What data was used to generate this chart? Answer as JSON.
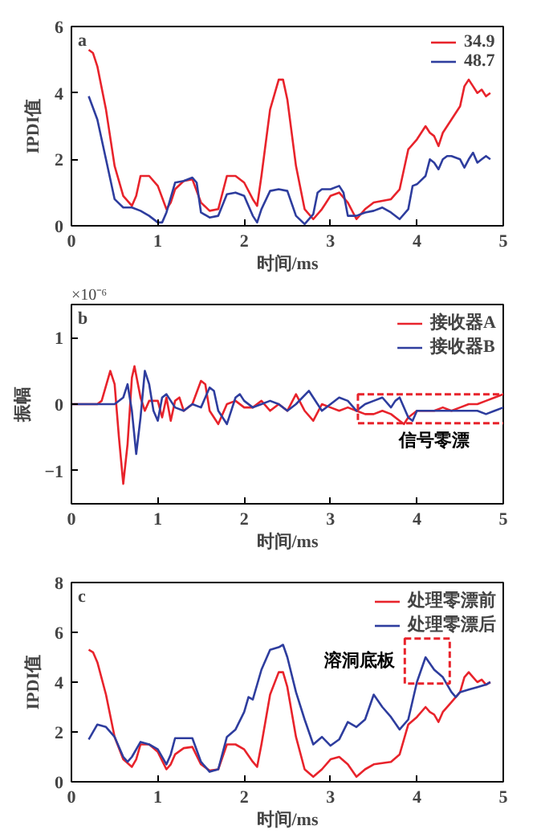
{
  "chart_data": [
    {
      "type": "line",
      "title": "a",
      "xlabel": "时间/ms",
      "ylabel": "IPDI值",
      "xlim": [
        0,
        5
      ],
      "xticks": [
        0,
        1,
        2,
        3,
        4,
        5
      ],
      "ylim": [
        0,
        6
      ],
      "yticks": [
        0,
        2,
        4,
        6
      ],
      "grid": false,
      "legend": "top right",
      "series": [
        {
          "name": "34.9",
          "color": "#e8232b",
          "x": [
            0.2,
            0.25,
            0.3,
            0.4,
            0.5,
            0.6,
            0.7,
            0.75,
            0.8,
            0.9,
            1.0,
            1.1,
            1.15,
            1.2,
            1.3,
            1.4,
            1.5,
            1.6,
            1.7,
            1.8,
            1.9,
            2.0,
            2.1,
            2.15,
            2.2,
            2.3,
            2.4,
            2.45,
            2.5,
            2.6,
            2.7,
            2.8,
            2.9,
            3.0,
            3.1,
            3.2,
            3.3,
            3.4,
            3.5,
            3.6,
            3.7,
            3.8,
            3.9,
            4.0,
            4.1,
            4.15,
            4.2,
            4.25,
            4.3,
            4.4,
            4.5,
            4.55,
            4.6,
            4.65,
            4.7,
            4.75,
            4.8,
            4.85
          ],
          "values": [
            5.3,
            5.2,
            4.8,
            3.5,
            1.8,
            0.9,
            0.6,
            0.9,
            1.5,
            1.5,
            1.2,
            0.5,
            0.7,
            1.1,
            1.35,
            1.4,
            0.7,
            0.45,
            0.5,
            1.5,
            1.5,
            1.3,
            0.8,
            0.6,
            1.5,
            3.5,
            4.4,
            4.4,
            3.8,
            1.8,
            0.5,
            0.2,
            0.5,
            0.9,
            1.0,
            0.7,
            0.2,
            0.5,
            0.7,
            0.75,
            0.8,
            1.1,
            2.3,
            2.6,
            3.0,
            2.8,
            2.7,
            2.4,
            2.8,
            3.2,
            3.6,
            4.2,
            4.4,
            4.2,
            4.0,
            4.1,
            3.9,
            4.0
          ]
        },
        {
          "name": "48.7",
          "color": "#2e3d9e",
          "x": [
            0.2,
            0.3,
            0.4,
            0.5,
            0.6,
            0.7,
            0.8,
            0.9,
            1.0,
            1.05,
            1.1,
            1.2,
            1.3,
            1.4,
            1.45,
            1.5,
            1.6,
            1.7,
            1.8,
            1.9,
            2.0,
            2.1,
            2.15,
            2.2,
            2.3,
            2.4,
            2.5,
            2.6,
            2.7,
            2.8,
            2.85,
            2.9,
            3.0,
            3.1,
            3.15,
            3.2,
            3.3,
            3.4,
            3.5,
            3.6,
            3.7,
            3.8,
            3.9,
            3.95,
            4.0,
            4.1,
            4.15,
            4.2,
            4.25,
            4.3,
            4.35,
            4.4,
            4.5,
            4.55,
            4.6,
            4.65,
            4.7,
            4.75,
            4.8,
            4.85
          ],
          "values": [
            3.9,
            3.2,
            2.0,
            0.8,
            0.55,
            0.55,
            0.45,
            0.3,
            0.1,
            0.1,
            0.4,
            1.3,
            1.35,
            1.45,
            1.3,
            0.4,
            0.25,
            0.3,
            0.95,
            1.0,
            0.9,
            0.3,
            0.1,
            0.5,
            1.05,
            1.1,
            1.05,
            0.3,
            0.05,
            0.35,
            1.0,
            1.1,
            1.1,
            1.2,
            1.0,
            0.3,
            0.3,
            0.4,
            0.45,
            0.55,
            0.4,
            0.2,
            0.5,
            1.2,
            1.25,
            1.5,
            2.0,
            1.9,
            1.7,
            2.0,
            2.1,
            2.1,
            2.0,
            1.75,
            2.0,
            2.2,
            1.9,
            2.0,
            2.1,
            2.0
          ]
        }
      ]
    },
    {
      "type": "line",
      "title": "b",
      "xlabel": "时间/ms",
      "ylabel": "振幅",
      "xlim": [
        0,
        5
      ],
      "xticks": [
        0,
        1,
        2,
        3,
        4,
        5
      ],
      "ylim": [
        -1.5,
        1.5
      ],
      "yticks": [
        -1,
        0,
        1
      ],
      "grid": false,
      "legend": "top right",
      "annotations": [
        "×10⁻⁶",
        {
          "text": "信号零漂",
          "x": 4.2,
          "y": -0.07
        }
      ],
      "series": [
        {
          "name": "接收器A",
          "color": "#e8232b",
          "x": [
            0,
            0.3,
            0.35,
            0.45,
            0.5,
            0.55,
            0.6,
            0.65,
            0.7,
            0.73,
            0.8,
            0.85,
            0.9,
            1.0,
            1.05,
            1.1,
            1.15,
            1.2,
            1.25,
            1.3,
            1.4,
            1.5,
            1.55,
            1.6,
            1.7,
            1.8,
            1.9,
            2.0,
            2.1,
            2.2,
            2.3,
            2.4,
            2.5,
            2.6,
            2.7,
            2.8,
            2.9,
            3.0,
            3.1,
            3.2,
            3.3,
            3.4,
            3.5,
            3.6,
            3.7,
            3.8,
            3.85,
            3.9,
            4.0,
            4.1,
            4.2,
            4.3,
            4.4,
            4.5,
            4.6,
            4.7,
            4.8,
            4.9,
            5.0
          ],
          "values": [
            0,
            0,
            0.05,
            0.5,
            0.3,
            -0.5,
            -1.2,
            -0.6,
            0.4,
            0.57,
            0.1,
            -0.1,
            0.05,
            0.05,
            -0.2,
            0.1,
            -0.25,
            0.05,
            0.1,
            -0.1,
            0.0,
            0.35,
            0.3,
            -0.1,
            -0.3,
            0,
            0.05,
            -0.05,
            -0.05,
            0.05,
            -0.1,
            0.0,
            -0.1,
            0.15,
            -0.1,
            -0.25,
            0.0,
            -0.05,
            -0.1,
            -0.05,
            -0.1,
            -0.15,
            -0.15,
            -0.1,
            -0.15,
            -0.25,
            -0.3,
            -0.2,
            -0.1,
            -0.1,
            -0.1,
            -0.05,
            -0.1,
            -0.05,
            0.0,
            0.0,
            0.05,
            0.1,
            0.15
          ]
        },
        {
          "name": "接收器B",
          "color": "#2e3d9e",
          "x": [
            0,
            0.5,
            0.6,
            0.65,
            0.7,
            0.75,
            0.8,
            0.85,
            0.9,
            0.95,
            1.0,
            1.05,
            1.1,
            1.2,
            1.3,
            1.4,
            1.5,
            1.6,
            1.65,
            1.7,
            1.8,
            1.9,
            1.95,
            2.0,
            2.1,
            2.2,
            2.3,
            2.4,
            2.5,
            2.6,
            2.75,
            2.8,
            2.9,
            3.0,
            3.1,
            3.2,
            3.3,
            3.4,
            3.5,
            3.6,
            3.7,
            3.75,
            3.8,
            3.9,
            3.95,
            4.0,
            4.1,
            4.2,
            4.3,
            4.4,
            4.5,
            4.6,
            4.7,
            4.8,
            4.9,
            5.0
          ],
          "values": [
            0,
            0,
            0.1,
            0.3,
            -0.1,
            -0.75,
            -0.2,
            0.5,
            0.3,
            -0.1,
            -0.25,
            0.1,
            0.15,
            -0.05,
            -0.1,
            0.0,
            -0.05,
            0.25,
            0.2,
            -0.1,
            -0.3,
            0.1,
            0.15,
            0.05,
            -0.05,
            0.0,
            0.05,
            0.0,
            -0.1,
            0.0,
            0.2,
            0.1,
            -0.1,
            0.0,
            0.1,
            0.05,
            -0.1,
            0.0,
            0.05,
            0.1,
            -0.05,
            0.05,
            0.1,
            -0.2,
            -0.25,
            -0.1,
            -0.1,
            -0.1,
            -0.1,
            -0.1,
            -0.1,
            -0.1,
            -0.1,
            -0.15,
            -0.1,
            -0.05
          ]
        }
      ]
    },
    {
      "type": "line",
      "title": "c",
      "xlabel": "时间/ms",
      "ylabel": "IPDI值",
      "xlim": [
        0,
        5
      ],
      "xticks": [
        0,
        1,
        2,
        3,
        4,
        5
      ],
      "ylim": [
        0,
        8
      ],
      "yticks": [
        0,
        2,
        4,
        6,
        8
      ],
      "grid": false,
      "legend": "top right",
      "annotations": [
        {
          "text": "溶洞底板",
          "x": 4.12,
          "y": 4.85
        }
      ],
      "series": [
        {
          "name": "处理零漂前",
          "color": "#e8232b",
          "x": [
            0.2,
            0.25,
            0.3,
            0.4,
            0.5,
            0.6,
            0.7,
            0.75,
            0.8,
            0.9,
            1.0,
            1.1,
            1.15,
            1.2,
            1.3,
            1.4,
            1.5,
            1.6,
            1.7,
            1.8,
            1.9,
            2.0,
            2.1,
            2.15,
            2.2,
            2.3,
            2.4,
            2.45,
            2.5,
            2.6,
            2.7,
            2.8,
            2.9,
            3.0,
            3.1,
            3.2,
            3.3,
            3.4,
            3.5,
            3.6,
            3.7,
            3.8,
            3.9,
            4.0,
            4.1,
            4.15,
            4.2,
            4.25,
            4.3,
            4.4,
            4.5,
            4.55,
            4.6,
            4.65,
            4.7,
            4.75,
            4.8,
            4.85
          ],
          "values": [
            5.3,
            5.2,
            4.8,
            3.5,
            1.8,
            0.9,
            0.6,
            0.9,
            1.5,
            1.5,
            1.2,
            0.5,
            0.7,
            1.1,
            1.35,
            1.4,
            0.7,
            0.45,
            0.5,
            1.5,
            1.5,
            1.3,
            0.8,
            0.6,
            1.5,
            3.5,
            4.4,
            4.4,
            3.8,
            1.8,
            0.5,
            0.2,
            0.5,
            0.9,
            1.0,
            0.7,
            0.2,
            0.5,
            0.7,
            0.75,
            0.8,
            1.1,
            2.3,
            2.6,
            3.0,
            2.8,
            2.7,
            2.4,
            2.8,
            3.2,
            3.6,
            4.2,
            4.4,
            4.2,
            4.0,
            4.1,
            3.9,
            4.0
          ]
        },
        {
          "name": "处理零漂后",
          "color": "#2e3d9e",
          "x": [
            0.2,
            0.3,
            0.4,
            0.5,
            0.6,
            0.65,
            0.7,
            0.8,
            0.9,
            1.0,
            1.1,
            1.15,
            1.2,
            1.3,
            1.4,
            1.5,
            1.6,
            1.7,
            1.8,
            1.9,
            2.0,
            2.05,
            2.1,
            2.2,
            2.3,
            2.4,
            2.45,
            2.5,
            2.6,
            2.7,
            2.8,
            2.9,
            3.0,
            3.1,
            3.2,
            3.3,
            3.4,
            3.5,
            3.6,
            3.7,
            3.8,
            3.9,
            4.0,
            4.1,
            4.2,
            4.3,
            4.4,
            4.45,
            4.5,
            4.6,
            4.7,
            4.8,
            4.85
          ],
          "values": [
            1.7,
            2.3,
            2.2,
            1.8,
            1.0,
            0.8,
            1.0,
            1.6,
            1.5,
            1.3,
            0.7,
            1.1,
            1.75,
            1.75,
            1.75,
            0.8,
            0.4,
            0.5,
            1.8,
            2.1,
            2.8,
            3.4,
            3.3,
            4.5,
            5.3,
            5.4,
            5.5,
            5.0,
            3.6,
            2.5,
            1.5,
            1.8,
            1.45,
            1.7,
            2.4,
            2.2,
            2.5,
            3.5,
            3.0,
            2.6,
            2.1,
            2.5,
            4.0,
            5.0,
            4.5,
            4.2,
            3.6,
            3.4,
            3.6,
            3.7,
            3.8,
            3.9,
            4.0
          ]
        }
      ]
    }
  ]
}
